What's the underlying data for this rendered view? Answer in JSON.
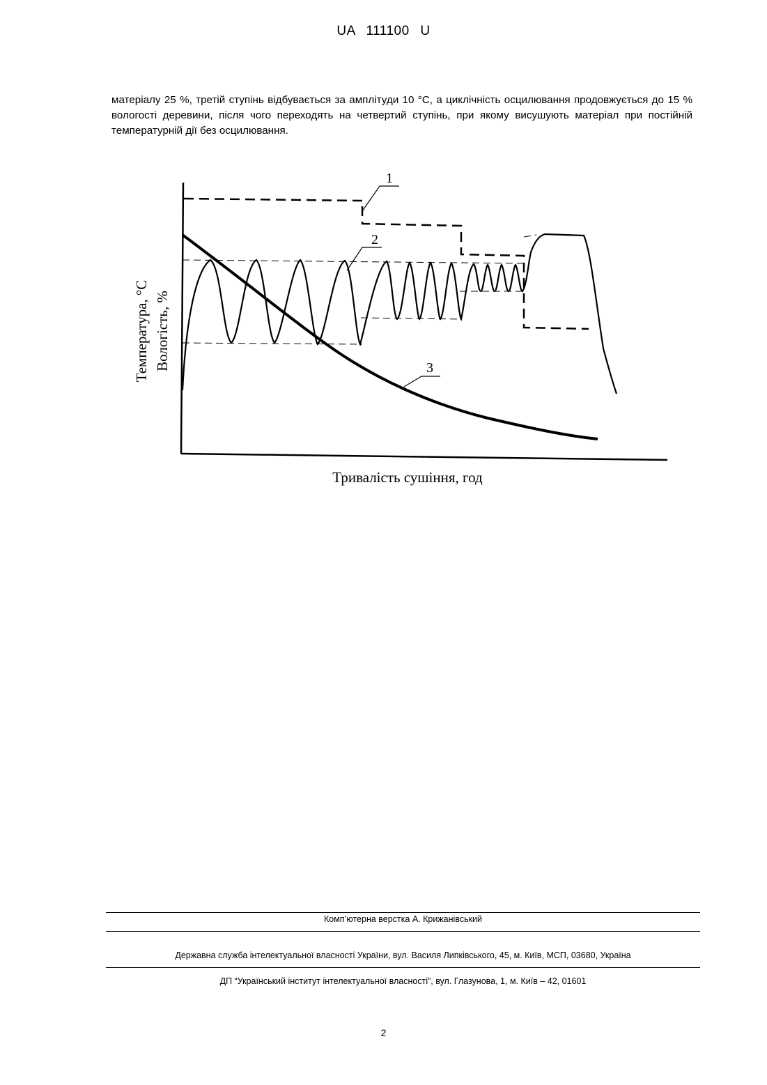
{
  "header": {
    "doc_number": "UA   111100   U"
  },
  "body": {
    "paragraph": "матеріалу 25 %, третій ступінь відбувається за амплітуди 10 °С, а циклічність осцилювання продовжується до 15 % вологості деревини, після чого переходять на четвертий ступінь, при якому висушують матеріал при постійній температурній дії без осцилювання."
  },
  "figure": {
    "ylabel_temperature": "Температура, °С",
    "ylabel_moisture": "Вологість, %",
    "xlabel": "Тривалість сушіння, год",
    "curve_labels": [
      "1",
      "2",
      "3"
    ]
  },
  "footer": {
    "layout_credit": "Комп’ютерна верстка А. Крижанівський",
    "agency": "Державна служба інтелектуальної власності України, вул. Василя Липківського, 45, м. Київ, МСП, 03680, Україна",
    "institute": "ДП “Український інститут інтелектуальної власності”, вул. Глазунова, 1, м. Київ – 42, 01601"
  },
  "page": {
    "number": "2"
  }
}
